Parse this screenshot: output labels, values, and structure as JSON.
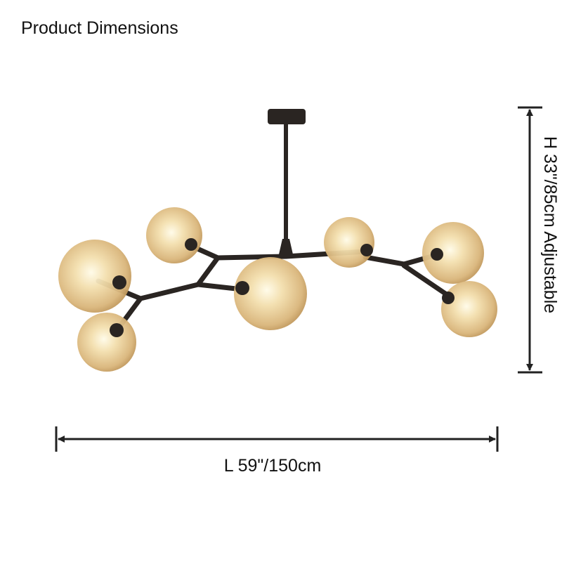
{
  "title": "Product Dimensions",
  "dimensions": {
    "height": "H 33\"/85cm Adjustable",
    "length": "L 59\"/150cm"
  }
}
